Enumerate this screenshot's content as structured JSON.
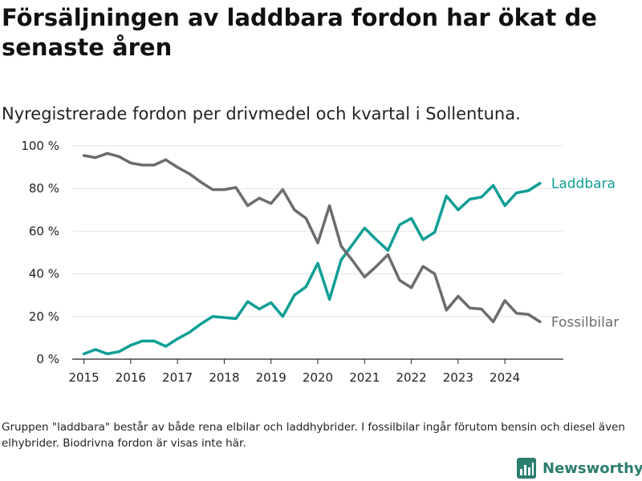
{
  "title": "Försäljningen av laddbara fordon har ökat de senaste åren",
  "subtitle": "Nyregistrerade fordon per drivmedel och kvartal i Sollentuna.",
  "footnote": "Gruppen \"laddbara\" består av både rena elbilar och laddhybrider. I fossilbilar ingår förutom bensin och diesel även elhybrider. Biodrivna fordon är visas inte här.",
  "brand": {
    "name": "Newsworthy",
    "icon": "newsworthy-logo-icon"
  },
  "colors": {
    "laddbara": "#0f9e96",
    "fossil": "#6b6b70",
    "grid": "#e6e6e6",
    "axis": "#222222"
  },
  "chart_data": {
    "type": "line",
    "title": "Försäljningen av laddbara fordon har ökat de senaste åren",
    "xlabel": "",
    "ylabel": "",
    "ylim": [
      0,
      100
    ],
    "xlim": [
      2014.75,
      2025.25
    ],
    "x_ticks": [
      2015,
      2016,
      2017,
      2018,
      2019,
      2020,
      2021,
      2022,
      2023,
      2024
    ],
    "x_tick_labels": [
      "2015",
      "2016",
      "2017",
      "2018",
      "2019",
      "2020",
      "2021",
      "2022",
      "2023",
      "2024"
    ],
    "y_ticks": [
      0,
      20,
      40,
      60,
      80,
      100
    ],
    "y_tick_labels": [
      "0 %",
      "20 %",
      "40 %",
      "60 %",
      "80 %",
      "100 %"
    ],
    "grid": true,
    "legend": "direct-labels-right",
    "x": [
      2015.0,
      2015.25,
      2015.5,
      2015.75,
      2016.0,
      2016.25,
      2016.5,
      2016.75,
      2017.0,
      2017.25,
      2017.5,
      2017.75,
      2018.0,
      2018.25,
      2018.5,
      2018.75,
      2019.0,
      2019.25,
      2019.5,
      2019.75,
      2020.0,
      2020.25,
      2020.5,
      2020.75,
      2021.0,
      2021.25,
      2021.5,
      2021.75,
      2022.0,
      2022.25,
      2022.5,
      2022.75,
      2023.0,
      2023.25,
      2023.5,
      2023.75,
      2024.0,
      2024.25,
      2024.5,
      2024.75
    ],
    "series": [
      {
        "name": "Laddbara",
        "color": "#0f9e96",
        "values": [
          2.5,
          4.5,
          2.5,
          3.5,
          6.5,
          8.5,
          8.5,
          6.0,
          9.5,
          12.5,
          16.5,
          20.0,
          19.5,
          19.0,
          27.0,
          23.5,
          26.5,
          20.0,
          30.0,
          34.0,
          45.0,
          28.0,
          46.5,
          54.0,
          61.5,
          56.0,
          51.0,
          63.0,
          66.0,
          56.0,
          59.5,
          76.5,
          70.0,
          75.0,
          76.0,
          81.5,
          72.0,
          78.0,
          79.0,
          82.5
        ]
      },
      {
        "name": "Fossilbilar",
        "color": "#6b6b70",
        "values": [
          95.5,
          94.5,
          96.5,
          95.0,
          92.0,
          91.0,
          91.0,
          93.5,
          90.0,
          87.0,
          83.0,
          79.5,
          79.5,
          80.5,
          72.0,
          75.5,
          73.0,
          79.5,
          70.0,
          66.0,
          54.5,
          72.0,
          53.0,
          46.0,
          38.5,
          43.5,
          49.0,
          37.0,
          33.5,
          43.5,
          40.0,
          23.0,
          29.5,
          24.0,
          23.5,
          17.5,
          27.5,
          21.5,
          21.0,
          17.5
        ]
      }
    ]
  }
}
